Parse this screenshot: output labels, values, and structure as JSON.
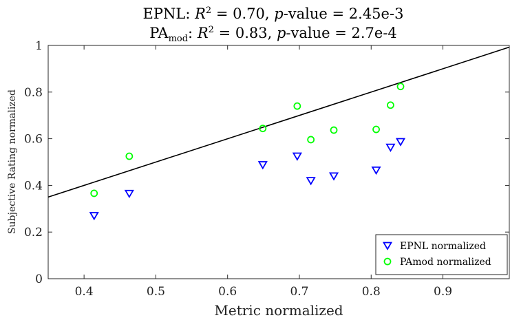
{
  "chart_data": {
    "type": "scatter",
    "title_line1": {
      "prefix": "EPNL: ",
      "r2_symbol": "R",
      "r2_sup": "2",
      "r2_value": " = 0.70, ",
      "p_symbol": "p",
      "p_value": "-value = 2.45e-3"
    },
    "title_line2": {
      "prefix": "PA",
      "prefix_sub": "mod",
      "colon": ": ",
      "r2_symbol": "R",
      "r2_sup": "2",
      "r2_value": " = 0.83, ",
      "p_symbol": "p",
      "p_value": "-value = 2.7e-4"
    },
    "xlabel": "Metric normalized",
    "ylabel": "Subjective Rating normalized",
    "xlim": [
      0.35,
      0.9925
    ],
    "ylim": [
      0,
      1
    ],
    "x_ticks": [
      0.4,
      0.5,
      0.6,
      0.7,
      0.8,
      0.9
    ],
    "x_tick_labels": [
      "0.4",
      "0.5",
      "0.6",
      "0.7",
      "0.8",
      "0.9"
    ],
    "y_ticks": [
      0,
      0.2,
      0.4,
      0.6,
      0.8,
      1
    ],
    "y_tick_labels": [
      "0",
      "0.2",
      "0.4",
      "0.6",
      "0.8",
      "1"
    ],
    "grid": false,
    "legend_position": "bottom-right",
    "series": [
      {
        "name": "EPNL normalized",
        "marker": "triangle-down",
        "color": "#0000ff",
        "points": [
          {
            "x": 0.414,
            "y": 0.27
          },
          {
            "x": 0.463,
            "y": 0.365
          },
          {
            "x": 0.649,
            "y": 0.488
          },
          {
            "x": 0.697,
            "y": 0.525
          },
          {
            "x": 0.716,
            "y": 0.42
          },
          {
            "x": 0.748,
            "y": 0.44
          },
          {
            "x": 0.807,
            "y": 0.465
          },
          {
            "x": 0.827,
            "y": 0.563
          },
          {
            "x": 0.841,
            "y": 0.587
          }
        ]
      },
      {
        "name": "PAmod normalized",
        "marker": "circle",
        "color": "#00ff00",
        "points": [
          {
            "x": 0.414,
            "y": 0.366
          },
          {
            "x": 0.463,
            "y": 0.525
          },
          {
            "x": 0.649,
            "y": 0.644
          },
          {
            "x": 0.697,
            "y": 0.74
          },
          {
            "x": 0.716,
            "y": 0.596
          },
          {
            "x": 0.748,
            "y": 0.637
          },
          {
            "x": 0.807,
            "y": 0.64
          },
          {
            "x": 0.827,
            "y": 0.744
          },
          {
            "x": 0.841,
            "y": 0.824
          }
        ]
      }
    ],
    "reference_line": {
      "color": "#000000",
      "points": [
        {
          "x": 0.35,
          "y": 0.35
        },
        {
          "x": 0.9925,
          "y": 0.9925
        }
      ]
    }
  }
}
